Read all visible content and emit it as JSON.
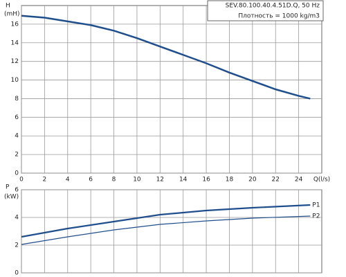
{
  "chart_data": [
    {
      "type": "line",
      "title": "SEV.80.100.40.4.51D.Q, 50 Hz",
      "subtitle": "Плотность = 1000 kg/m3",
      "y_label": "H",
      "y_unit": "(mH)",
      "x_label": "Q(l/s)",
      "xlim": [
        0,
        26
      ],
      "xticks": [
        0,
        2,
        4,
        6,
        8,
        10,
        12,
        14,
        16,
        18,
        20,
        22,
        24
      ],
      "ylim": [
        0,
        18
      ],
      "yticks": [
        0,
        2,
        4,
        6,
        8,
        10,
        12,
        14,
        16
      ],
      "grid": true,
      "x": [
        0,
        2,
        4,
        6,
        8,
        10,
        12,
        14,
        16,
        18,
        20,
        22,
        24,
        25
      ],
      "series": [
        {
          "color": "#1f4e8c",
          "values": [
            16.9,
            16.7,
            16.3,
            15.9,
            15.3,
            14.5,
            13.6,
            12.7,
            11.8,
            10.8,
            9.9,
            9.0,
            8.3,
            8.0
          ]
        }
      ]
    },
    {
      "type": "line",
      "y_label": "P",
      "y_unit": "(kW)",
      "xlim": [
        0,
        26
      ],
      "ylim": [
        0,
        6
      ],
      "yticks": [
        0,
        2,
        4,
        6
      ],
      "grid": true,
      "x": [
        0,
        4,
        8,
        12,
        16,
        20,
        25
      ],
      "series": [
        {
          "name": "P1",
          "color": "#1f4e8c",
          "values": [
            2.6,
            3.2,
            3.7,
            4.2,
            4.5,
            4.7,
            4.9
          ]
        },
        {
          "name": "P2",
          "color": "#1f4e8c",
          "values": [
            2.05,
            2.6,
            3.1,
            3.5,
            3.75,
            3.95,
            4.1
          ]
        }
      ]
    }
  ]
}
